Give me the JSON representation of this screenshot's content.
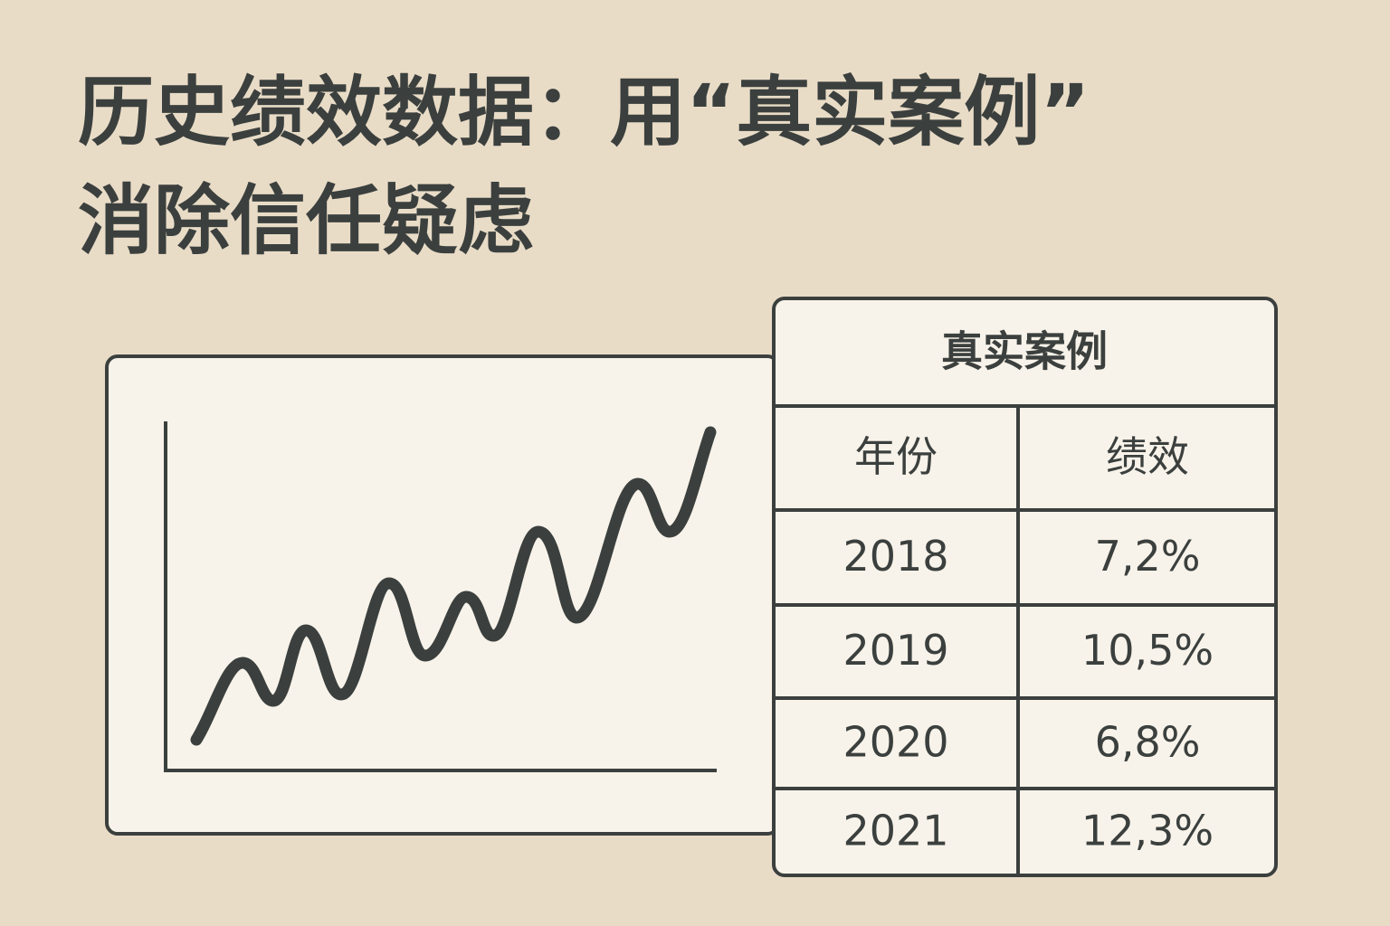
{
  "title_lines": [
    "历史绩效数据：用“真实案例”",
    "消除信任疑虑"
  ],
  "table": {
    "title": "真实案例",
    "header": [
      "年份",
      "绩效"
    ],
    "rows": [
      [
        "2018",
        "7,2%"
      ],
      [
        "2019",
        "10,5%"
      ],
      [
        "2020",
        "6,8%"
      ],
      [
        "2021",
        "12,3%"
      ]
    ]
  }
}
